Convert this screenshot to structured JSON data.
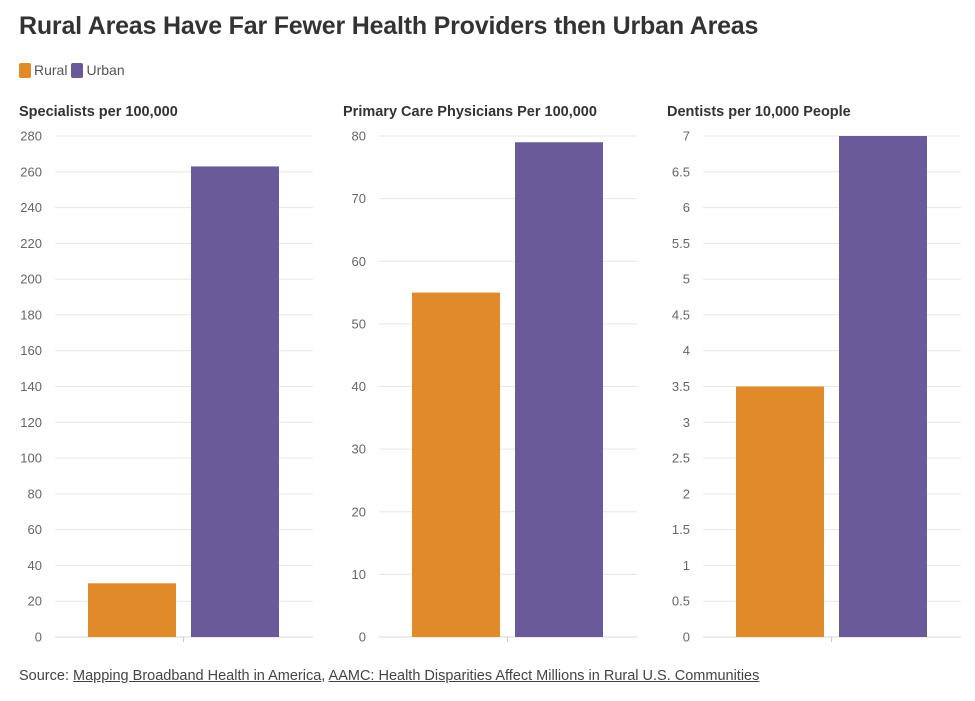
{
  "title": "Rural Areas Have Far Fewer Health Providers then Urban Areas",
  "legend": [
    {
      "label": "Rural",
      "color": "#e08a2a"
    },
    {
      "label": "Urban",
      "color": "#6a5a9a"
    }
  ],
  "source": {
    "prefix": "Source: ",
    "link1": "Mapping Broadband Health in America",
    "separator": ", ",
    "link2": "AAMC: Health Disparities Affect Millions in Rural U.S. Communities"
  },
  "chart_data": [
    {
      "type": "bar",
      "title": "Specialists per 100,000",
      "categories": [
        "Rural",
        "Urban"
      ],
      "values": [
        30,
        263
      ],
      "ylim": [
        0,
        280
      ],
      "yticks": [
        "0",
        "20",
        "40",
        "60",
        "80",
        "100",
        "120",
        "140",
        "160",
        "180",
        "200",
        "220",
        "240",
        "260",
        "280"
      ],
      "grid": true
    },
    {
      "type": "bar",
      "title": "Primary Care Physicians Per 100,000",
      "categories": [
        "Rural",
        "Urban"
      ],
      "values": [
        55,
        79
      ],
      "ylim": [
        0,
        80
      ],
      "yticks": [
        "0",
        "10",
        "20",
        "30",
        "40",
        "50",
        "60",
        "70",
        "80"
      ],
      "grid": true
    },
    {
      "type": "bar",
      "title": "Dentists per 10,000 People",
      "categories": [
        "Rural",
        "Urban"
      ],
      "values": [
        3.5,
        7
      ],
      "ylim": [
        0,
        7
      ],
      "yticks": [
        "0",
        "0.5",
        "1",
        "1.5",
        "2",
        "2.5",
        "3",
        "3.5",
        "4",
        "4.5",
        "5",
        "5.5",
        "6",
        "6.5",
        "7"
      ],
      "grid": true
    }
  ]
}
